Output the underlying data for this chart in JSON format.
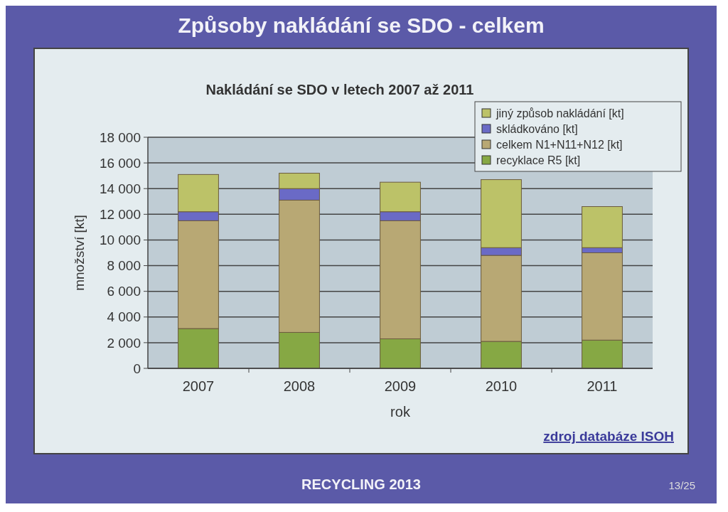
{
  "chart_data": {
    "type": "bar",
    "title": "Způsoby nakládání se SDO - celkem",
    "subtitle": "Nakládání se SDO v letech 2007 až 2011",
    "xlabel": "rok",
    "ylabel": "množství [kt]",
    "categories": [
      "2007",
      "2008",
      "2009",
      "2010",
      "2011"
    ],
    "stacked": true,
    "series": [
      {
        "name": "recyklace R5 [kt]",
        "color": "#86a844",
        "values": [
          3100,
          2800,
          2300,
          2100,
          2200
        ]
      },
      {
        "name": "celkem N1+N11+N12 [kt]",
        "color": "#b8a874",
        "values": [
          8400,
          10300,
          9200,
          6700,
          6800
        ]
      },
      {
        "name": "skládkováno [kt]",
        "color": "#6a6ac6",
        "values": [
          700,
          900,
          700,
          600,
          400
        ]
      },
      {
        "name": "jiný způsob nakládání [kt]",
        "color": "#bcc268",
        "values": [
          2900,
          1200,
          2300,
          5300,
          3200
        ]
      }
    ],
    "ylim": [
      0,
      18000
    ],
    "yticks": [
      0,
      {
        "value": 2000,
        "label": "2 000"
      },
      {
        "value": 4000,
        "label": "4 000"
      },
      {
        "value": 6000,
        "label": "6 000"
      },
      {
        "value": 8000,
        "label": "8 000"
      },
      {
        "value": 10000,
        "label": "10 000"
      },
      {
        "value": 12000,
        "label": "12 000"
      },
      {
        "value": 14000,
        "label": "14 000"
      },
      {
        "value": 16000,
        "label": "16 000"
      },
      {
        "value": 18000,
        "label": "18 000"
      }
    ],
    "grid": "y",
    "legend": "top right",
    "annotations": [
      "zdroj databáze ISOH",
      "RECYCLING 2013",
      "13/25"
    ]
  }
}
